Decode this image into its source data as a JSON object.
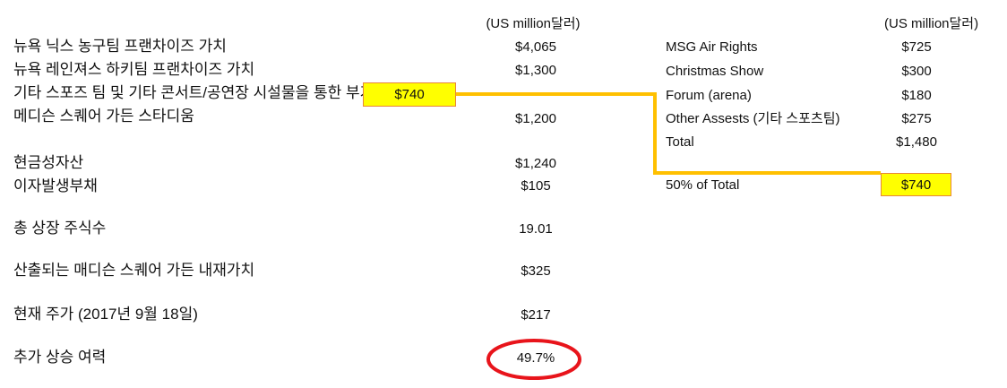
{
  "unit_label": "(US million달러)",
  "left_rows": [
    {
      "label": "뉴욕 닉스 농구팀 프랜차이즈 가치",
      "value": "$4,065"
    },
    {
      "label": "뉴욕 레인져스 하키팀 프랜차이즈 가치",
      "value": "$1,300"
    },
    {
      "label": "기타 스포즈 팀 및 기타 콘서트/공연장 시설물을 통한 부가가치",
      "value": "$740"
    },
    {
      "label": "메디슨 스퀘어 가든 스타디움",
      "value": "$1,200"
    },
    {
      "label": "현금성자산",
      "value": "$1,240"
    },
    {
      "label": "이자발생부채",
      "value": "$105"
    },
    {
      "label": "총 상장 주식수",
      "value": "19.01"
    },
    {
      "label": "산출되는 매디슨 스퀘어 가든 내재가치",
      "value": "$325"
    },
    {
      "label": "현재 주가 (2017년 9월 18일)",
      "value": "$217"
    },
    {
      "label": "추가 상승 여력",
      "value": "49.7%"
    }
  ],
  "right_unit_label": "(US million달러)",
  "right_rows": [
    {
      "label": "MSG Air Rights",
      "value": "$725"
    },
    {
      "label": "Christmas Show",
      "value": "$300"
    },
    {
      "label": "Forum (arena)",
      "value": "$180"
    },
    {
      "label": "Other Assests (기타 스포츠팀)",
      "value": "$275"
    },
    {
      "label": "Total",
      "value": "$1,480"
    },
    {
      "label": "50% of Total",
      "value": "$740"
    }
  ],
  "colors": {
    "highlight": "#ffff00",
    "connector": "#ffc000",
    "circle": "#e8141b"
  }
}
